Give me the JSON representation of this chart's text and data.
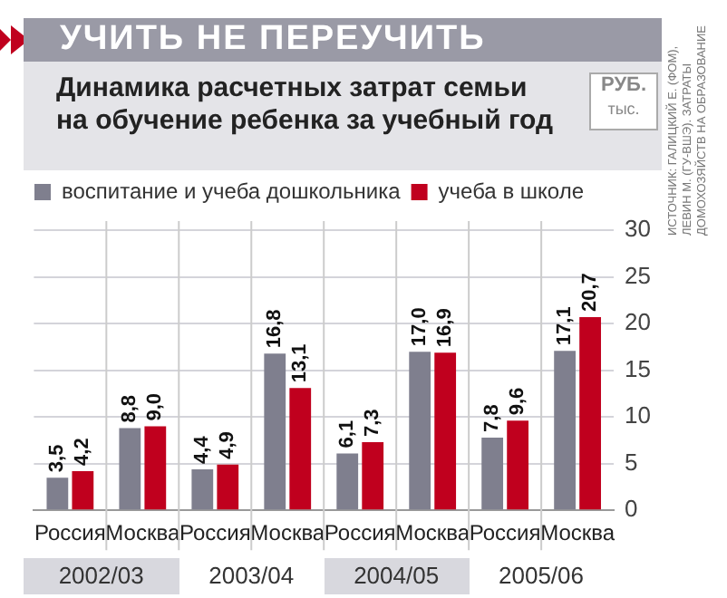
{
  "chart_data": {
    "type": "bar",
    "title": "УЧИТЬ НЕ ПЕРЕУЧИТЬ",
    "subtitle": "Динамика расчетных затрат семьи на обучение ребенка за учебный год",
    "ylabel": "РУБ. тыс.",
    "categories": [
      "Россия",
      "Москва",
      "Россия",
      "Москва",
      "Россия",
      "Москва",
      "Россия",
      "Москва"
    ],
    "series": [
      {
        "name": "воспитание и учеба дошкольника",
        "color": "#7f7f8e",
        "values": [
          3.5,
          8.8,
          4.4,
          16.8,
          6.1,
          17.0,
          7.8,
          17.1
        ],
        "value_labels": [
          "3,5",
          "8,8",
          "4,4",
          "16,8",
          "6,1",
          "17,0",
          "7,8",
          "17,1"
        ]
      },
      {
        "name": "учеба в школе",
        "color": "#c0001e",
        "values": [
          4.2,
          9.0,
          4.9,
          13.1,
          7.3,
          16.9,
          9.6,
          20.7
        ],
        "value_labels": [
          "4,2",
          "9,0",
          "4,9",
          "13,1",
          "7,3",
          "16,9",
          "9,6",
          "20,7"
        ]
      }
    ],
    "ylim": [
      0,
      31
    ],
    "yticks": [
      0,
      5,
      10,
      15,
      20,
      25,
      30
    ],
    "grid": "y",
    "legend": "top left",
    "annotations": [
      "2002/03",
      "2003/04",
      "2004/05",
      "2005/06",
      "ИСТОЧНИК: ГАЛИЦКИЙ Е. (ФОМ), ЛЕВИН М. (ГУ-ВШЭ). ЗАТРАТЫ ДОМОХОЗЯЙСТВ НА ОБРАЗОВАНИЕ"
    ]
  }
}
